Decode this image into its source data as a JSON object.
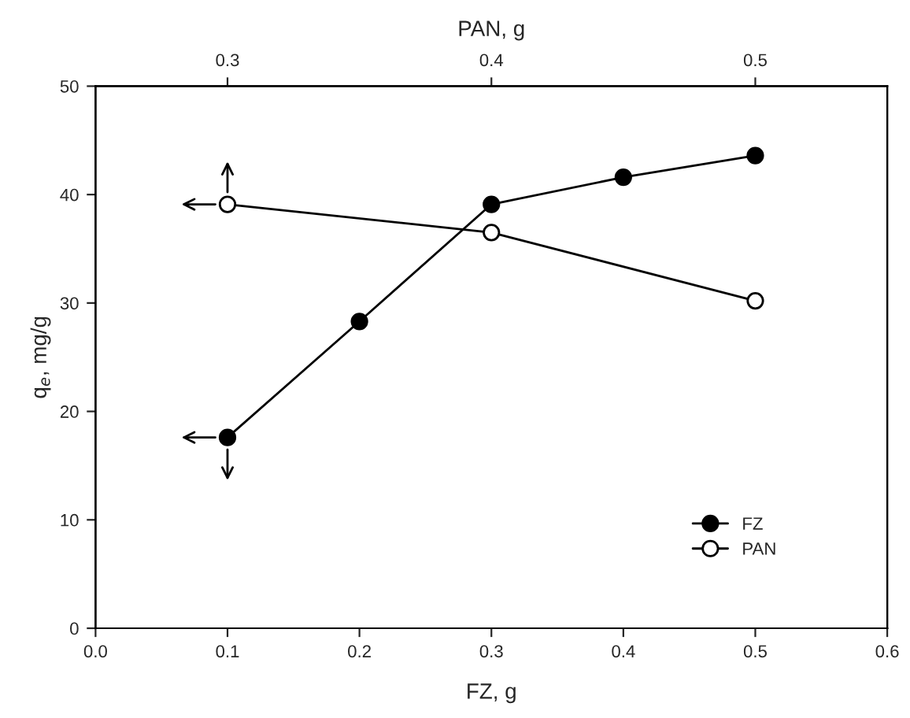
{
  "chart_data": {
    "type": "line",
    "xlabel": "FZ, g",
    "x2label": "PAN, g",
    "ylabel": "q$_{e}$, mg/g",
    "xlim": [
      0,
      0.6
    ],
    "xticks": [
      {
        "value": 0,
        "label": "0.0"
      },
      {
        "value": 0.1,
        "label": "0.1"
      },
      {
        "value": 0.2,
        "label": "0.2"
      },
      {
        "value": 0.3,
        "label": "0.3"
      },
      {
        "value": 0.4,
        "label": "0.4"
      },
      {
        "value": 0.5,
        "label": "0.5"
      },
      {
        "value": 0.6,
        "label": "0.6"
      }
    ],
    "x2lim": [
      0.25,
      0.55
    ],
    "x2ticks": [
      {
        "value": 0.3,
        "label": "0.3"
      },
      {
        "value": 0.4,
        "label": "0.4"
      },
      {
        "value": 0.5,
        "label": "0.5"
      }
    ],
    "ylim": [
      0,
      50
    ],
    "yticks": [
      0,
      10,
      20,
      30,
      40,
      50
    ],
    "marker": "circle",
    "line_style": "solid",
    "grid": false,
    "legend": "bottom right",
    "series": [
      {
        "name": "FZ",
        "color": "#000000",
        "x": [
          0.1,
          0.2,
          0.3,
          0.4,
          0.5
        ],
        "values": [
          17.6,
          28.3,
          39.1,
          41.6,
          43.6
        ]
      },
      {
        "name": "PAN",
        "color": "#000000",
        "axis": "x2",
        "x": [
          0.3,
          0.4,
          0.5
        ],
        "values": [
          39.1,
          36.5,
          30.2
        ]
      }
    ]
  }
}
